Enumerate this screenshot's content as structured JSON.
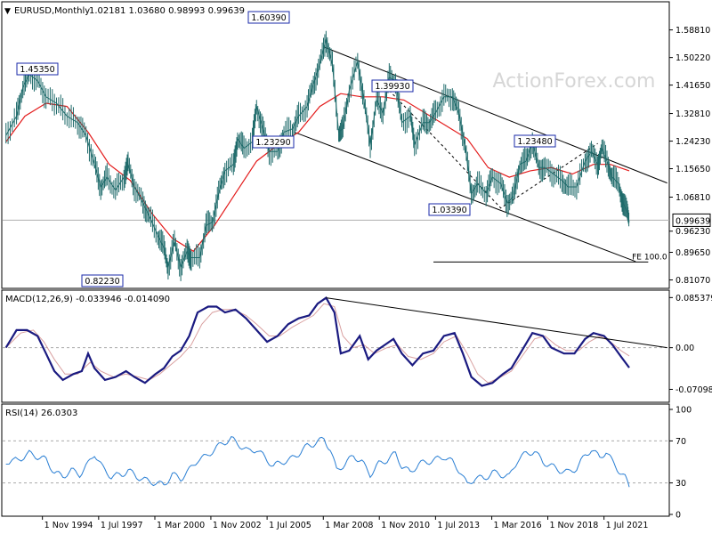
{
  "chart_data": {
    "type": "line",
    "symbol_label": "EURUSD,Monthly",
    "ohlc_label": "1.02181 1.03680 0.98993 0.99639",
    "watermark": "ActionForex.com",
    "x_ticks": [
      "1 Nov 1994",
      "1 Jul 1997",
      "1 Mar 2000",
      "1 Nov 2002",
      "1 Jul 2005",
      "1 Mar 2008",
      "1 Nov 2010",
      "1 Jul 2013",
      "1 Mar 2016",
      "1 Nov 2018",
      "1 Jul 2021"
    ],
    "price_panel": {
      "y_ticks": [
        "1.58810",
        "1.50220",
        "1.41650",
        "1.32810",
        "1.24230",
        "1.15650",
        "1.06810",
        "0.96230",
        "0.89650",
        "0.81070"
      ],
      "ylim": [
        0.79,
        1.67
      ],
      "current_price_label": "0.99639",
      "current_price": 0.99639,
      "fe_label": "FE 100.0",
      "fe_level": 0.8665,
      "annotations": [
        {
          "label": "1.45350",
          "t": 1994.95,
          "price": 1.4535
        },
        {
          "label": "1.60390",
          "t": 2008.4,
          "price": 1.6039
        },
        {
          "label": "1.39930",
          "t": 2011.3,
          "price": 1.3993
        },
        {
          "label": "1.23290",
          "t": 2008.8,
          "price": 1.2329
        },
        {
          "label": "1.03390",
          "t": 2017.0,
          "price": 1.0339
        },
        {
          "label": "1.23480",
          "t": 2021.2,
          "price": 1.2348
        },
        {
          "label": "0.82230",
          "t": 2000.8,
          "price": 0.8223
        }
      ],
      "price_series": [
        [
          1993.1,
          1.26
        ],
        [
          1993.6,
          1.32
        ],
        [
          1993.9,
          1.41
        ],
        [
          1994.2,
          1.45
        ],
        [
          1994.6,
          1.43
        ],
        [
          1995.0,
          1.38
        ],
        [
          1995.5,
          1.36
        ],
        [
          1996.0,
          1.32
        ],
        [
          1996.5,
          1.3
        ],
        [
          1996.9,
          1.26
        ],
        [
          1997.3,
          1.17
        ],
        [
          1997.6,
          1.1
        ],
        [
          1997.9,
          1.13
        ],
        [
          1998.3,
          1.09
        ],
        [
          1998.7,
          1.13
        ],
        [
          1998.9,
          1.17
        ],
        [
          1999.2,
          1.1
        ],
        [
          1999.6,
          1.05
        ],
        [
          1999.9,
          1.01
        ],
        [
          2000.3,
          0.95
        ],
        [
          2000.6,
          0.91
        ],
        [
          2000.8,
          0.85
        ],
        [
          2001.1,
          0.93
        ],
        [
          2001.4,
          0.85
        ],
        [
          2001.7,
          0.9
        ],
        [
          2001.9,
          0.88
        ],
        [
          2002.3,
          0.88
        ],
        [
          2002.6,
          0.98
        ],
        [
          2002.9,
          0.99
        ],
        [
          2003.2,
          1.08
        ],
        [
          2003.5,
          1.15
        ],
        [
          2003.9,
          1.17
        ],
        [
          2004.1,
          1.25
        ],
        [
          2004.4,
          1.22
        ],
        [
          2004.8,
          1.24
        ],
        [
          2005.0,
          1.35
        ],
        [
          2005.3,
          1.28
        ],
        [
          2005.6,
          1.21
        ],
        [
          2006.0,
          1.21
        ],
        [
          2006.3,
          1.27
        ],
        [
          2006.7,
          1.28
        ],
        [
          2007.0,
          1.32
        ],
        [
          2007.4,
          1.35
        ],
        [
          2007.7,
          1.42
        ],
        [
          2008.0,
          1.48
        ],
        [
          2008.3,
          1.56
        ],
        [
          2008.6,
          1.48
        ],
        [
          2008.9,
          1.27
        ],
        [
          2009.1,
          1.28
        ],
        [
          2009.4,
          1.4
        ],
        [
          2009.8,
          1.49
        ],
        [
          2010.1,
          1.37
        ],
        [
          2010.4,
          1.23
        ],
        [
          2010.7,
          1.37
        ],
        [
          2011.0,
          1.33
        ],
        [
          2011.3,
          1.44
        ],
        [
          2011.6,
          1.43
        ],
        [
          2011.9,
          1.3
        ],
        [
          2012.3,
          1.32
        ],
        [
          2012.5,
          1.23
        ],
        [
          2012.9,
          1.3
        ],
        [
          2013.2,
          1.3
        ],
        [
          2013.5,
          1.33
        ],
        [
          2013.9,
          1.38
        ],
        [
          2014.3,
          1.38
        ],
        [
          2014.6,
          1.33
        ],
        [
          2014.9,
          1.23
        ],
        [
          2015.2,
          1.08
        ],
        [
          2015.5,
          1.11
        ],
        [
          2015.9,
          1.08
        ],
        [
          2016.2,
          1.13
        ],
        [
          2016.6,
          1.11
        ],
        [
          2016.9,
          1.05
        ],
        [
          2017.2,
          1.07
        ],
        [
          2017.5,
          1.17
        ],
        [
          2017.8,
          1.18
        ],
        [
          2018.1,
          1.24
        ],
        [
          2018.4,
          1.16
        ],
        [
          2018.7,
          1.16
        ],
        [
          2019.1,
          1.14
        ],
        [
          2019.5,
          1.12
        ],
        [
          2019.8,
          1.1
        ],
        [
          2020.2,
          1.1
        ],
        [
          2020.6,
          1.18
        ],
        [
          2020.9,
          1.21
        ],
        [
          2021.2,
          1.17
        ],
        [
          2021.4,
          1.22
        ],
        [
          2021.7,
          1.17
        ],
        [
          2021.9,
          1.13
        ],
        [
          2022.2,
          1.11
        ],
        [
          2022.4,
          1.05
        ],
        [
          2022.6,
          1.02
        ],
        [
          2022.7,
          0.99
        ]
      ],
      "ma_series": [
        [
          1993.1,
          1.24
        ],
        [
          1994.0,
          1.32
        ],
        [
          1995.0,
          1.36
        ],
        [
          1996.0,
          1.35
        ],
        [
          1997.0,
          1.27
        ],
        [
          1998.0,
          1.17
        ],
        [
          1999.0,
          1.12
        ],
        [
          2000.0,
          1.02
        ],
        [
          2001.0,
          0.94
        ],
        [
          2002.0,
          0.9
        ],
        [
          2003.0,
          0.98
        ],
        [
          2004.0,
          1.08
        ],
        [
          2005.0,
          1.18
        ],
        [
          2006.0,
          1.23
        ],
        [
          2007.0,
          1.27
        ],
        [
          2008.0,
          1.35
        ],
        [
          2009.0,
          1.39
        ],
        [
          2010.0,
          1.38
        ],
        [
          2011.0,
          1.38
        ],
        [
          2012.0,
          1.37
        ],
        [
          2013.0,
          1.33
        ],
        [
          2014.0,
          1.29
        ],
        [
          2015.0,
          1.25
        ],
        [
          2016.0,
          1.16
        ],
        [
          2017.0,
          1.13
        ],
        [
          2018.0,
          1.15
        ],
        [
          2019.0,
          1.16
        ],
        [
          2020.0,
          1.14
        ],
        [
          2021.0,
          1.17
        ],
        [
          2021.8,
          1.17
        ],
        [
          2022.7,
          1.15
        ]
      ]
    },
    "macd_panel": {
      "label": "MACD(12,26,9) -0.033946 -0.014090",
      "y_ticks": [
        "0.085379",
        "0.00",
        "-0.070989"
      ],
      "ylim": [
        -0.09,
        0.095
      ],
      "macd_series": [
        [
          1993.1,
          0.0
        ],
        [
          1993.6,
          0.03
        ],
        [
          1994.1,
          0.03
        ],
        [
          1994.6,
          0.02
        ],
        [
          1995.0,
          -0.01
        ],
        [
          1995.4,
          -0.04
        ],
        [
          1995.8,
          -0.055
        ],
        [
          1996.3,
          -0.045
        ],
        [
          1996.7,
          -0.04
        ],
        [
          1997.0,
          -0.01
        ],
        [
          1997.3,
          -0.035
        ],
        [
          1997.8,
          -0.055
        ],
        [
          1998.3,
          -0.05
        ],
        [
          1998.8,
          -0.04
        ],
        [
          1999.2,
          -0.05
        ],
        [
          1999.7,
          -0.06
        ],
        [
          2000.2,
          -0.045
        ],
        [
          2000.6,
          -0.035
        ],
        [
          2001.0,
          -0.015
        ],
        [
          2001.4,
          -0.005
        ],
        [
          2001.8,
          0.02
        ],
        [
          2002.2,
          0.06
        ],
        [
          2002.7,
          0.07
        ],
        [
          2003.1,
          0.07
        ],
        [
          2003.5,
          0.06
        ],
        [
          2004.0,
          0.065
        ],
        [
          2004.5,
          0.05
        ],
        [
          2005.0,
          0.03
        ],
        [
          2005.5,
          0.01
        ],
        [
          2006.0,
          0.02
        ],
        [
          2006.5,
          0.04
        ],
        [
          2007.0,
          0.05
        ],
        [
          2007.5,
          0.055
        ],
        [
          2007.9,
          0.075
        ],
        [
          2008.3,
          0.085
        ],
        [
          2008.7,
          0.06
        ],
        [
          2009.0,
          -0.01
        ],
        [
          2009.4,
          -0.005
        ],
        [
          2009.9,
          0.02
        ],
        [
          2010.3,
          -0.02
        ],
        [
          2010.7,
          -0.005
        ],
        [
          2011.1,
          0.005
        ],
        [
          2011.5,
          0.015
        ],
        [
          2011.9,
          -0.01
        ],
        [
          2012.4,
          -0.03
        ],
        [
          2012.9,
          -0.01
        ],
        [
          2013.4,
          -0.005
        ],
        [
          2013.9,
          0.02
        ],
        [
          2014.4,
          0.025
        ],
        [
          2014.8,
          -0.01
        ],
        [
          2015.2,
          -0.05
        ],
        [
          2015.7,
          -0.065
        ],
        [
          2016.2,
          -0.06
        ],
        [
          2016.7,
          -0.045
        ],
        [
          2017.1,
          -0.035
        ],
        [
          2017.6,
          -0.005
        ],
        [
          2018.1,
          0.025
        ],
        [
          2018.6,
          0.02
        ],
        [
          2019.0,
          0.0
        ],
        [
          2019.6,
          -0.01
        ],
        [
          2020.1,
          -0.01
        ],
        [
          2020.6,
          0.015
        ],
        [
          2021.0,
          0.025
        ],
        [
          2021.5,
          0.02
        ],
        [
          2021.9,
          0.005
        ],
        [
          2022.3,
          -0.015
        ],
        [
          2022.7,
          -0.034
        ]
      ],
      "signal_series": [
        [
          1993.1,
          0.0
        ],
        [
          1993.8,
          0.025
        ],
        [
          1994.4,
          0.03
        ],
        [
          1994.9,
          0.01
        ],
        [
          1995.4,
          -0.02
        ],
        [
          1995.9,
          -0.045
        ],
        [
          1996.5,
          -0.045
        ],
        [
          1997.1,
          -0.025
        ],
        [
          1997.6,
          -0.04
        ],
        [
          1998.2,
          -0.05
        ],
        [
          1998.8,
          -0.045
        ],
        [
          1999.4,
          -0.05
        ],
        [
          1999.9,
          -0.055
        ],
        [
          2000.4,
          -0.045
        ],
        [
          2000.9,
          -0.03
        ],
        [
          2001.4,
          -0.015
        ],
        [
          2001.9,
          0.005
        ],
        [
          2002.4,
          0.04
        ],
        [
          2002.9,
          0.06
        ],
        [
          2003.4,
          0.065
        ],
        [
          2003.9,
          0.065
        ],
        [
          2004.5,
          0.055
        ],
        [
          2005.0,
          0.04
        ],
        [
          2005.6,
          0.02
        ],
        [
          2006.1,
          0.02
        ],
        [
          2006.7,
          0.035
        ],
        [
          2007.2,
          0.045
        ],
        [
          2007.7,
          0.055
        ],
        [
          2008.2,
          0.075
        ],
        [
          2008.7,
          0.07
        ],
        [
          2009.1,
          0.02
        ],
        [
          2009.6,
          0.0
        ],
        [
          2010.1,
          0.005
        ],
        [
          2010.6,
          -0.01
        ],
        [
          2011.2,
          0.0
        ],
        [
          2011.7,
          0.005
        ],
        [
          2012.2,
          -0.015
        ],
        [
          2012.8,
          -0.02
        ],
        [
          2013.4,
          -0.01
        ],
        [
          2013.9,
          0.01
        ],
        [
          2014.5,
          0.02
        ],
        [
          2015.0,
          -0.01
        ],
        [
          2015.5,
          -0.045
        ],
        [
          2016.0,
          -0.06
        ],
        [
          2016.6,
          -0.05
        ],
        [
          2017.1,
          -0.04
        ],
        [
          2017.6,
          -0.015
        ],
        [
          2018.2,
          0.015
        ],
        [
          2018.7,
          0.02
        ],
        [
          2019.2,
          0.005
        ],
        [
          2019.7,
          -0.005
        ],
        [
          2020.3,
          -0.005
        ],
        [
          2020.8,
          0.01
        ],
        [
          2021.3,
          0.02
        ],
        [
          2021.8,
          0.01
        ],
        [
          2022.3,
          -0.005
        ],
        [
          2022.7,
          -0.014
        ]
      ],
      "trendline": [
        [
          2008.3,
          0.085
        ],
        [
          2024.5,
          0.0
        ]
      ]
    },
    "rsi_panel": {
      "label": "RSI(14) 26.0303",
      "y_ticks": [
        "100",
        "70",
        "30",
        "0"
      ],
      "levels": [
        70,
        30
      ],
      "ylim": [
        0,
        100
      ],
      "rsi_series": [
        [
          1993.1,
          50
        ],
        [
          1993.7,
          52
        ],
        [
          1994.2,
          58
        ],
        [
          1994.6,
          55
        ],
        [
          1995.0,
          52
        ],
        [
          1995.4,
          40
        ],
        [
          1995.8,
          36
        ],
        [
          1996.2,
          42
        ],
        [
          1996.6,
          38
        ],
        [
          1997.0,
          48
        ],
        [
          1997.3,
          58
        ],
        [
          1997.7,
          44
        ],
        [
          1998.1,
          36
        ],
        [
          1998.6,
          38
        ],
        [
          1998.9,
          42
        ],
        [
          1999.3,
          36
        ],
        [
          1999.8,
          32
        ],
        [
          2000.2,
          30
        ],
        [
          2000.6,
          28
        ],
        [
          2001.0,
          38
        ],
        [
          2001.4,
          34
        ],
        [
          2001.8,
          42
        ],
        [
          2002.2,
          52
        ],
        [
          2002.6,
          55
        ],
        [
          2003.0,
          62
        ],
        [
          2003.4,
          68
        ],
        [
          2003.8,
          72
        ],
        [
          2004.2,
          66
        ],
        [
          2004.6,
          60
        ],
        [
          2005.0,
          62
        ],
        [
          2005.4,
          54
        ],
        [
          2005.8,
          46
        ],
        [
          2006.2,
          50
        ],
        [
          2006.6,
          52
        ],
        [
          2007.0,
          58
        ],
        [
          2007.4,
          65
        ],
        [
          2007.8,
          68
        ],
        [
          2008.2,
          72
        ],
        [
          2008.5,
          62
        ],
        [
          2008.8,
          42
        ],
        [
          2009.2,
          48
        ],
        [
          2009.6,
          56
        ],
        [
          2010.0,
          50
        ],
        [
          2010.4,
          38
        ],
        [
          2010.8,
          48
        ],
        [
          2011.2,
          52
        ],
        [
          2011.6,
          58
        ],
        [
          2011.9,
          46
        ],
        [
          2012.3,
          40
        ],
        [
          2012.7,
          48
        ],
        [
          2013.1,
          50
        ],
        [
          2013.5,
          52
        ],
        [
          2013.9,
          55
        ],
        [
          2014.3,
          50
        ],
        [
          2014.7,
          40
        ],
        [
          2015.0,
          28
        ],
        [
          2015.4,
          35
        ],
        [
          2015.8,
          34
        ],
        [
          2016.2,
          40
        ],
        [
          2016.6,
          38
        ],
        [
          2017.0,
          36
        ],
        [
          2017.4,
          52
        ],
        [
          2017.8,
          58
        ],
        [
          2018.2,
          60
        ],
        [
          2018.6,
          50
        ],
        [
          2019.0,
          46
        ],
        [
          2019.4,
          42
        ],
        [
          2019.8,
          40
        ],
        [
          2020.2,
          44
        ],
        [
          2020.6,
          56
        ],
        [
          2020.9,
          62
        ],
        [
          2021.3,
          54
        ],
        [
          2021.6,
          60
        ],
        [
          2021.9,
          50
        ],
        [
          2022.2,
          42
        ],
        [
          2022.5,
          35
        ],
        [
          2022.7,
          26
        ]
      ]
    }
  }
}
